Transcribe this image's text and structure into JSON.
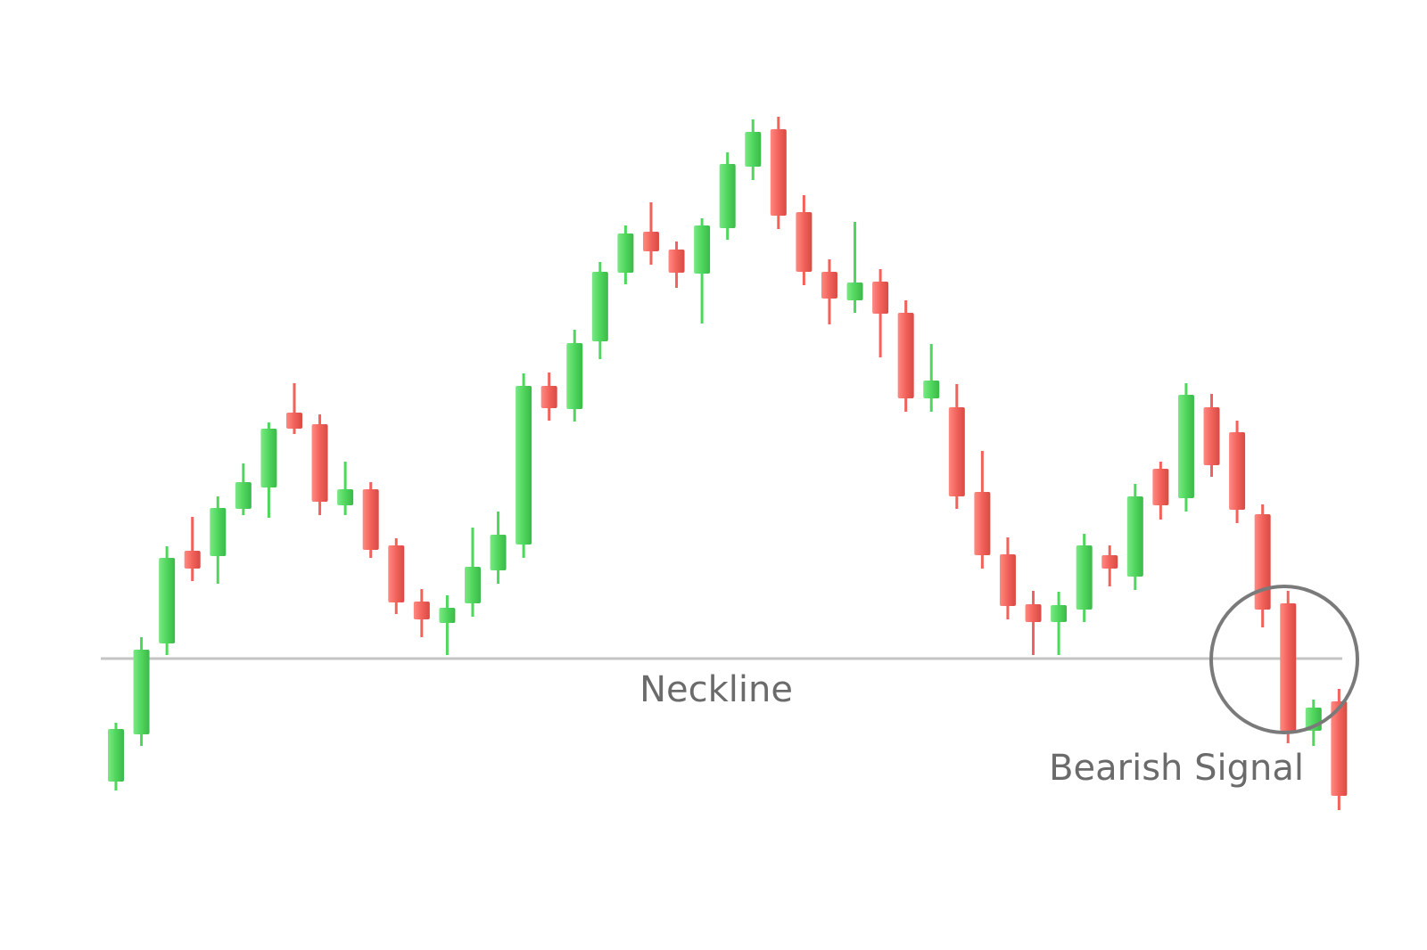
{
  "chart_data": {
    "type": "candlestick",
    "open": [
      189,
      242,
      344,
      448,
      442,
      495,
      519,
      603,
      590,
      499,
      517,
      454,
      391,
      367,
      389,
      426,
      455,
      633,
      607,
      683,
      760,
      806,
      786,
      759,
      810,
      879,
      921,
      828,
      761,
      729,
      750,
      715,
      619,
      609,
      514,
      444,
      388,
      368,
      382,
      443,
      419,
      540,
      507,
      609,
      581,
      489,
      389,
      246,
      279
    ],
    "high": [
      255,
      351,
      453,
      486,
      509,
      546,
      592,
      636,
      601,
      548,
      525,
      462,
      405,
      398,
      474,
      492,
      647,
      648,
      696,
      772,
      813,
      839,
      795,
      821,
      895,
      932,
      935,
      847,
      775,
      817,
      764,
      729,
      680,
      635,
      560,
      463,
      403,
      402,
      467,
      454,
      523,
      548,
      636,
      624,
      594,
      500,
      403,
      281,
      293
    ],
    "low": [
      179,
      229,
      331,
      414,
      411,
      488,
      485,
      579,
      488,
      488,
      440,
      377,
      351,
      331,
      374,
      411,
      440,
      594,
      593,
      663,
      747,
      769,
      743,
      703,
      797,
      864,
      809,
      746,
      702,
      715,
      665,
      604,
      604,
      495,
      428,
      371,
      331,
      331,
      368,
      408,
      404,
      483,
      492,
      531,
      479,
      362,
      232,
      229,
      157
    ],
    "close": [
      248,
      337,
      440,
      428,
      496,
      525,
      585,
      585,
      503,
      517,
      449,
      390,
      371,
      384,
      430,
      466,
      633,
      608,
      681,
      761,
      804,
      784,
      760,
      813,
      882,
      918,
      824,
      761,
      731,
      749,
      714,
      619,
      639,
      509,
      443,
      386,
      368,
      387,
      454,
      428,
      509,
      499,
      623,
      544,
      494,
      382,
      246,
      272,
      173
    ],
    "up_color": "#4fd65c",
    "down_color": "#f2625b",
    "ylim": [
      0,
      1066
    ],
    "neckline": {
      "value": 327,
      "label": "Neckline"
    },
    "annotation": "Bearish Signal"
  }
}
